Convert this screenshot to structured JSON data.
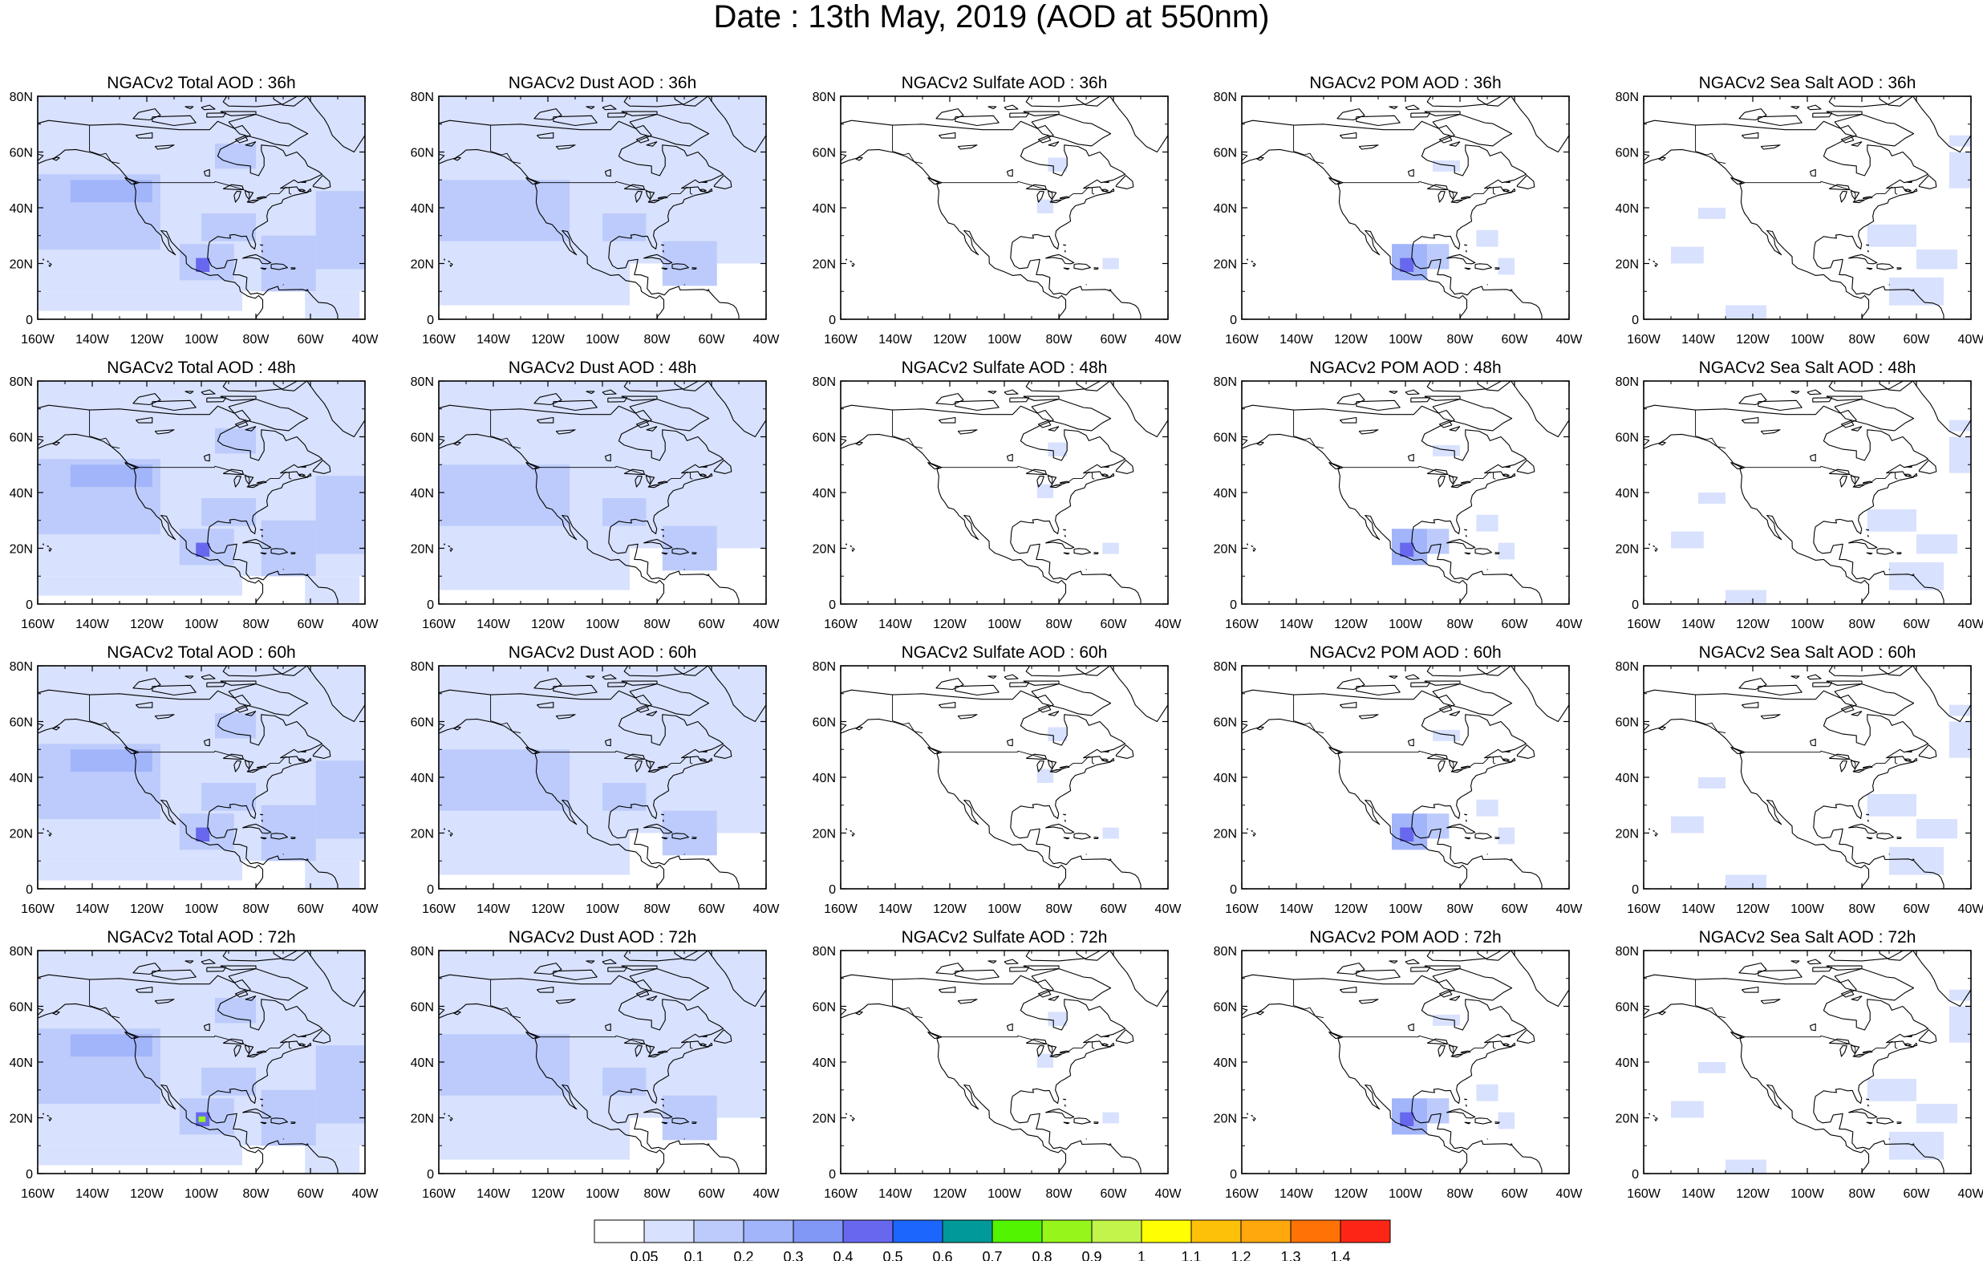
{
  "title": "Date : 13th May, 2019 (AOD at 550nm)",
  "panels": [
    [
      "NGACv2 Total AOD : 36h",
      "NGACv2 Dust AOD : 36h",
      "NGACv2 Sulfate AOD : 36h",
      "NGACv2 POM AOD : 36h",
      "NGACv2 Sea Salt AOD : 36h"
    ],
    [
      "NGACv2 Total AOD : 48h",
      "NGACv2 Dust AOD : 48h",
      "NGACv2 Sulfate AOD : 48h",
      "NGACv2 POM AOD : 48h",
      "NGACv2 Sea Salt AOD : 48h"
    ],
    [
      "NGACv2 Total AOD : 60h",
      "NGACv2 Dust AOD : 60h",
      "NGACv2 Sulfate AOD : 60h",
      "NGACv2 POM AOD : 60h",
      "NGACv2 Sea Salt AOD : 60h"
    ],
    [
      "NGACv2 Total AOD : 72h",
      "NGACv2 Dust AOD : 72h",
      "NGACv2 Sulfate AOD : 72h",
      "NGACv2 POM AOD : 72h",
      "NGACv2 Sea Salt  AOD : 72h"
    ]
  ],
  "x_ticks": [
    "160W",
    "140W",
    "120W",
    "100W",
    "80W",
    "60W",
    "40W"
  ],
  "y_ticks": [
    "0",
    "20N",
    "40N",
    "60N",
    "80N"
  ],
  "colorbar": {
    "labels": [
      "0.05",
      "0.1",
      "0.2",
      "0.3",
      "0.4",
      "0.5",
      "0.6",
      "0.7",
      "0.8",
      "0.9",
      "1",
      "1.1",
      "1.2",
      "1.3",
      "1.4"
    ],
    "colors": [
      "#ffffff",
      "#d8e1fd",
      "#bccbfb",
      "#a2b5fa",
      "#8298f7",
      "#6868ee",
      "#1d66fd",
      "#019999",
      "#52f402",
      "#96f61b",
      "#c2f44b",
      "#fffe02",
      "#fec10a",
      "#fea80e",
      "#ff7205",
      "#fd2616"
    ]
  },
  "colors": {
    "land_line": "#000000",
    "light": "#d8e1fd",
    "medium": "#bccbfb",
    "strong": "#a2b5fa",
    "hotspot": "#6868ee",
    "green": "#96f61b"
  }
}
